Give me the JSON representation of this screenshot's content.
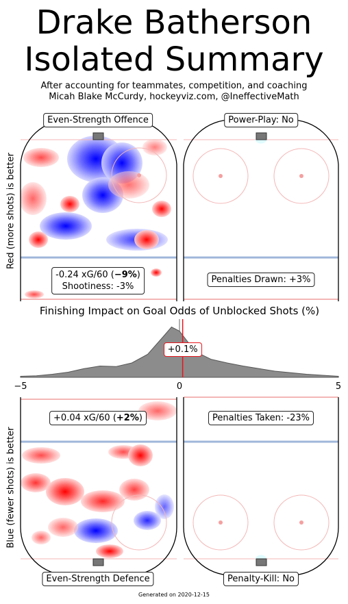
{
  "header": {
    "title_line1": "Drake Batherson",
    "title_line2": "Isolated Summary",
    "subtitle_line1": "After accounting for teammates, competition, and coaching",
    "subtitle_line2": "Micah Blake McCurdy, hockeyviz.com, @IneffectiveMath"
  },
  "rinks": {
    "ev_offence": {
      "label": "Even-Strength Offence",
      "stat_main": "-0.24 xG/60 (",
      "stat_bold": "−9%",
      "stat_close": ")",
      "stat2": "Shootiness: -3%"
    },
    "pp": {
      "label": "Power-Play: No",
      "stat": "Penalties Drawn: +3%"
    },
    "ev_defence": {
      "label": "Even-Strength Defence",
      "stat_main": "+0.04 xG/60 (",
      "stat_bold": "+2%",
      "stat_close": ")"
    },
    "pk": {
      "label": "Penalty-Kill: No",
      "stat": "Penalties Taken: -23%"
    }
  },
  "axis_labels": {
    "top_y": "Red (more shots) is better",
    "bottom_y": "Blue (fewer shots) is better"
  },
  "chart_data": {
    "type": "area",
    "title": "Finishing Impact on Goal Odds of Unblocked Shots (%)",
    "xlim": [
      -5,
      5
    ],
    "x_ticks": [
      "−5",
      "0",
      "5"
    ],
    "marker_value": 0.1,
    "marker_label": "+0.1%",
    "x": [
      -5,
      -4.5,
      -4,
      -3.5,
      -3,
      -2.5,
      -2,
      -1.5,
      -1,
      -0.5,
      -0.25,
      0,
      0.25,
      0.5,
      1,
      1.5,
      2,
      2.5,
      3,
      3.5,
      4,
      4.5,
      5
    ],
    "density": [
      0.02,
      0.03,
      0.06,
      0.1,
      0.17,
      0.22,
      0.21,
      0.28,
      0.45,
      0.8,
      0.98,
      0.9,
      0.7,
      0.5,
      0.35,
      0.28,
      0.22,
      0.17,
      0.12,
      0.09,
      0.06,
      0.04,
      0.02
    ],
    "colors": {
      "fill": "#8c8c8c",
      "marker": "#e8141c",
      "zero_line": "#888888"
    }
  },
  "footer": "Generated on 2020-12-15"
}
